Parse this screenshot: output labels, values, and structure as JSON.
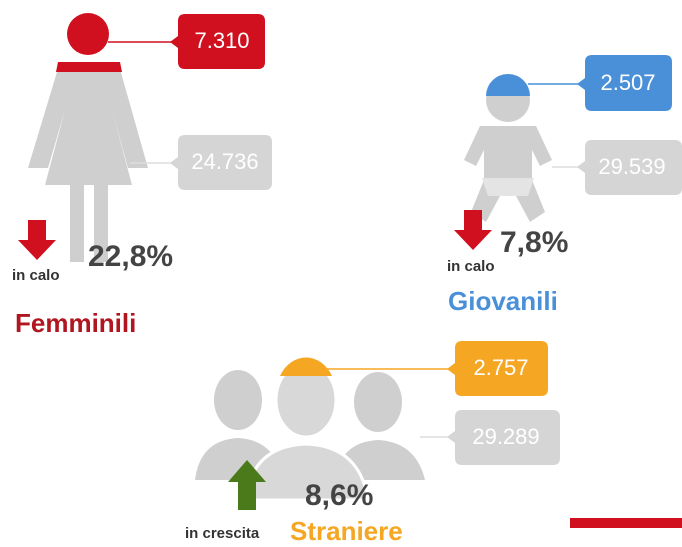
{
  "groups": [
    {
      "label": "Femminili",
      "highlight": "7.310",
      "total": "24.736",
      "change": "22,8%",
      "trend": "in calo"
    },
    {
      "label": "Giovanili",
      "highlight": "2.507",
      "total": "29.539",
      "change": "7,8%",
      "trend": "in calo"
    },
    {
      "label": "Straniere",
      "highlight": "2.757",
      "total": "29.289",
      "change": "8,6%",
      "trend": "in crescita"
    }
  ]
}
